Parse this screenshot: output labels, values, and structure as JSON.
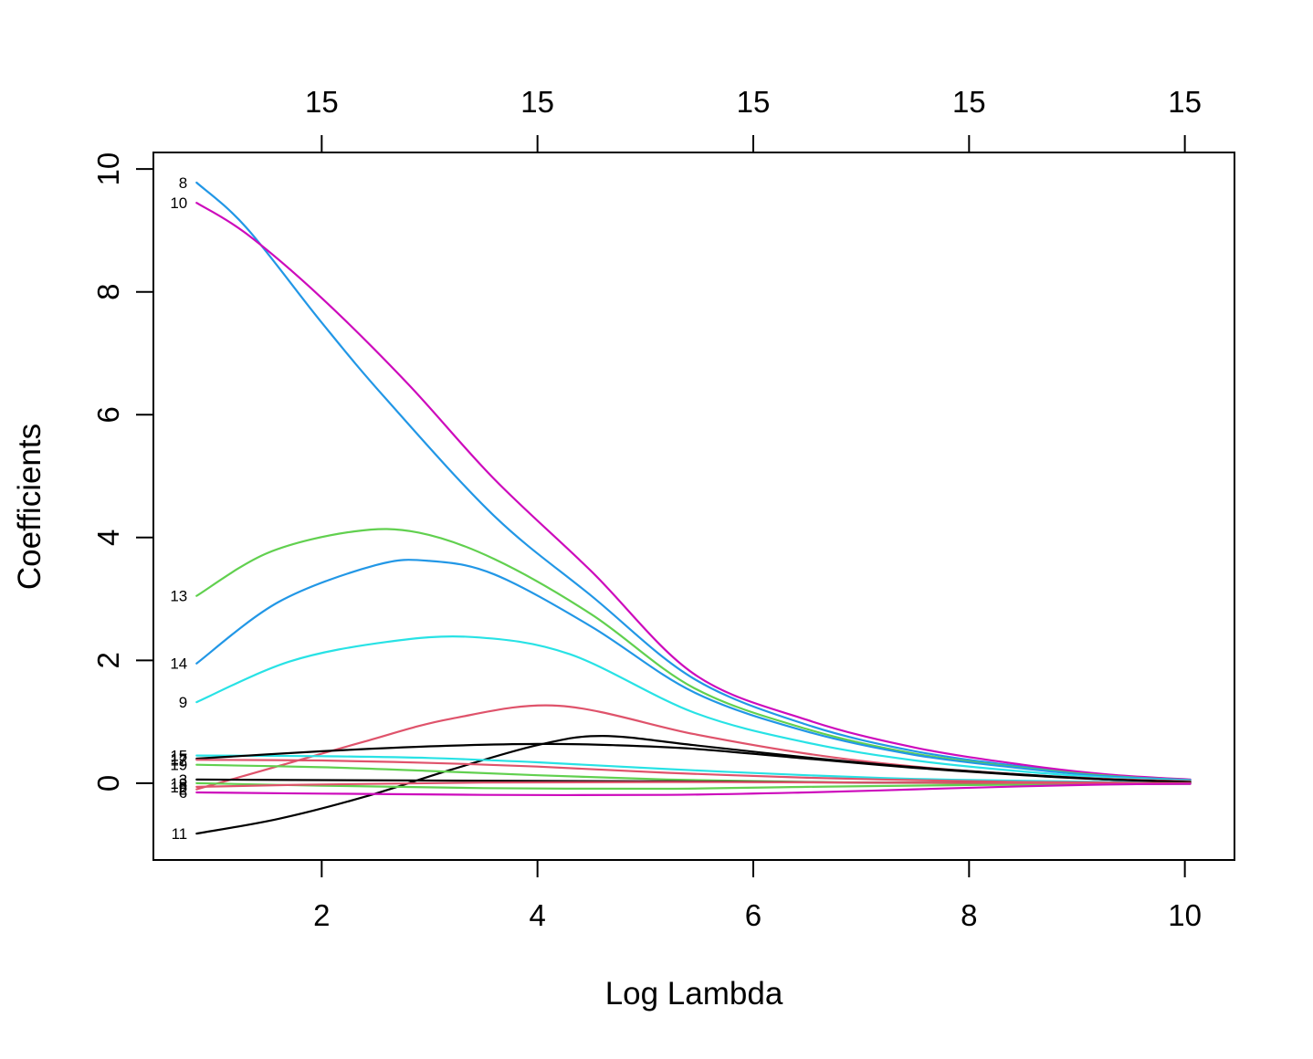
{
  "chart_data": {
    "type": "line",
    "title": "",
    "xlabel": "Log Lambda",
    "ylabel": "Coefficients",
    "grid": false,
    "legend": "none",
    "xlim": [
      0.44,
      10.46
    ],
    "ylim": [
      -1.25,
      10.27
    ],
    "x_ticks": [
      2,
      4,
      6,
      8,
      10
    ],
    "y_ticks": [
      0,
      2,
      4,
      6,
      8,
      10
    ],
    "top_axis": {
      "tick_positions": [
        2,
        4,
        6,
        8,
        10
      ],
      "tick_labels": [
        "15",
        "15",
        "15",
        "15",
        "15"
      ]
    },
    "palette": {
      "black": "#000000",
      "crimson": "#DF536B",
      "green": "#61D04F",
      "blue": "#2297E6",
      "cyan": "#28E2E5",
      "magenta": "#CD0BBC"
    },
    "series": [
      {
        "label": "8",
        "color": "#2297E6",
        "points": [
          [
            0.84,
            9.78
          ],
          [
            1.3,
            9.05
          ],
          [
            2,
            7.5
          ],
          [
            2.6,
            6.25
          ],
          [
            3.6,
            4.35
          ],
          [
            4.5,
            3.05
          ],
          [
            5.45,
            1.7
          ],
          [
            6.5,
            0.95
          ],
          [
            7.5,
            0.52
          ],
          [
            8.5,
            0.27
          ],
          [
            9.3,
            0.13
          ],
          [
            10.05,
            0.05
          ]
        ]
      },
      {
        "label": "10",
        "color": "#CD0BBC",
        "points": [
          [
            0.84,
            9.45
          ],
          [
            1.3,
            8.95
          ],
          [
            2,
            7.9
          ],
          [
            2.8,
            6.5
          ],
          [
            3.6,
            4.95
          ],
          [
            4.5,
            3.45
          ],
          [
            5.45,
            1.78
          ],
          [
            6.5,
            1.03
          ],
          [
            7.5,
            0.58
          ],
          [
            8.5,
            0.3
          ],
          [
            9.3,
            0.14
          ],
          [
            10.05,
            0.06
          ]
        ]
      },
      {
        "label": "13",
        "color": "#61D04F",
        "points": [
          [
            0.84,
            3.05
          ],
          [
            1.5,
            3.75
          ],
          [
            2.3,
            4.1
          ],
          [
            2.9,
            4.08
          ],
          [
            3.6,
            3.65
          ],
          [
            4.5,
            2.75
          ],
          [
            5.45,
            1.55
          ],
          [
            6.5,
            0.88
          ],
          [
            7.5,
            0.48
          ],
          [
            8.5,
            0.25
          ],
          [
            9.3,
            0.12
          ],
          [
            10.05,
            0.05
          ]
        ]
      },
      {
        "label": "14",
        "color": "#2297E6",
        "points": [
          [
            0.84,
            1.95
          ],
          [
            1.6,
            2.95
          ],
          [
            2.5,
            3.55
          ],
          [
            3.0,
            3.62
          ],
          [
            3.6,
            3.4
          ],
          [
            4.5,
            2.55
          ],
          [
            5.45,
            1.48
          ],
          [
            6.5,
            0.84
          ],
          [
            7.5,
            0.46
          ],
          [
            8.5,
            0.24
          ],
          [
            9.3,
            0.11
          ],
          [
            10.05,
            0.05
          ]
        ]
      },
      {
        "label": "9",
        "color": "#28E2E5",
        "points": [
          [
            0.84,
            1.32
          ],
          [
            1.7,
            1.98
          ],
          [
            2.6,
            2.3
          ],
          [
            3.4,
            2.38
          ],
          [
            4.3,
            2.1
          ],
          [
            5.45,
            1.15
          ],
          [
            6.5,
            0.66
          ],
          [
            7.5,
            0.37
          ],
          [
            8.5,
            0.19
          ],
          [
            9.3,
            0.09
          ],
          [
            10.05,
            0.04
          ]
        ]
      },
      {
        "label": "2",
        "color": "#DF536B",
        "points": [
          [
            0.84,
            -0.1
          ],
          [
            1.6,
            0.28
          ],
          [
            2.4,
            0.68
          ],
          [
            3.2,
            1.05
          ],
          [
            4.2,
            1.26
          ],
          [
            5.45,
            0.8
          ],
          [
            6.5,
            0.48
          ],
          [
            7.5,
            0.27
          ],
          [
            8.5,
            0.14
          ],
          [
            9.3,
            0.07
          ],
          [
            10.05,
            0.03
          ]
        ]
      },
      {
        "label": "11",
        "color": "#000000",
        "points": [
          [
            0.84,
            -0.82
          ],
          [
            1.6,
            -0.58
          ],
          [
            2.4,
            -0.22
          ],
          [
            3.2,
            0.22
          ],
          [
            4.0,
            0.62
          ],
          [
            4.6,
            0.77
          ],
          [
            5.45,
            0.62
          ],
          [
            6.5,
            0.42
          ],
          [
            7.5,
            0.26
          ],
          [
            8.5,
            0.14
          ],
          [
            9.3,
            0.06
          ],
          [
            10.05,
            0.02
          ]
        ]
      },
      {
        "label": "15",
        "color": "#28E2E5",
        "points": [
          [
            0.84,
            0.45
          ],
          [
            2,
            0.44
          ],
          [
            3,
            0.41
          ],
          [
            4,
            0.34
          ],
          [
            5.2,
            0.23
          ],
          [
            6.5,
            0.13
          ],
          [
            7.5,
            0.07
          ],
          [
            8.5,
            0.04
          ],
          [
            9.3,
            0.02
          ],
          [
            10.05,
            0.01
          ]
        ]
      },
      {
        "label": "17",
        "color": "#000000",
        "points": [
          [
            0.84,
            0.4
          ],
          [
            2,
            0.52
          ],
          [
            3,
            0.6
          ],
          [
            4,
            0.64
          ],
          [
            4.7,
            0.62
          ],
          [
            5.45,
            0.56
          ],
          [
            6.5,
            0.4
          ],
          [
            7.5,
            0.25
          ],
          [
            8.5,
            0.13
          ],
          [
            9.3,
            0.06
          ],
          [
            10.05,
            0.02
          ]
        ]
      },
      {
        "label": "12",
        "color": "#DF536B",
        "points": [
          [
            0.84,
            0.38
          ],
          [
            2,
            0.37
          ],
          [
            3,
            0.33
          ],
          [
            4,
            0.27
          ],
          [
            5.2,
            0.17
          ],
          [
            6.5,
            0.09
          ],
          [
            7.5,
            0.05
          ],
          [
            8.5,
            0.02
          ],
          [
            9.3,
            0.01
          ],
          [
            10.05,
            0.0
          ]
        ]
      },
      {
        "label": "19",
        "color": "#61D04F",
        "points": [
          [
            0.84,
            0.3
          ],
          [
            2,
            0.26
          ],
          [
            3,
            0.2
          ],
          [
            4,
            0.13
          ],
          [
            5.2,
            0.06
          ],
          [
            6.5,
            0.02
          ],
          [
            8,
            0.0
          ],
          [
            10.05,
            0.0
          ]
        ]
      },
      {
        "label": "3",
        "color": "#000000",
        "points": [
          [
            0.84,
            0.06
          ],
          [
            2,
            0.05
          ],
          [
            3.5,
            0.04
          ],
          [
            5.2,
            0.03
          ],
          [
            7,
            0.01
          ],
          [
            10.05,
            0.0
          ]
        ]
      },
      {
        "label": "18",
        "color": "#61D04F",
        "points": [
          [
            0.84,
            0.0
          ],
          [
            2,
            -0.04
          ],
          [
            3.5,
            -0.08
          ],
          [
            5.2,
            -0.09
          ],
          [
            6.5,
            -0.06
          ],
          [
            8,
            -0.03
          ],
          [
            10.05,
            -0.01
          ]
        ]
      },
      {
        "label": "16",
        "color": "#DF536B",
        "points": [
          [
            0.84,
            -0.06
          ],
          [
            2,
            -0.02
          ],
          [
            3.5,
            0.01
          ],
          [
            5.2,
            0.02
          ],
          [
            7,
            0.01
          ],
          [
            10.05,
            0.0
          ]
        ]
      },
      {
        "label": "6",
        "color": "#CD0BBC",
        "points": [
          [
            0.84,
            -0.15
          ],
          [
            2,
            -0.17
          ],
          [
            3.5,
            -0.19
          ],
          [
            5.2,
            -0.19
          ],
          [
            6.5,
            -0.15
          ],
          [
            7.5,
            -0.1
          ],
          [
            8.5,
            -0.05
          ],
          [
            9.3,
            -0.02
          ],
          [
            10.05,
            -0.01
          ]
        ]
      }
    ]
  }
}
